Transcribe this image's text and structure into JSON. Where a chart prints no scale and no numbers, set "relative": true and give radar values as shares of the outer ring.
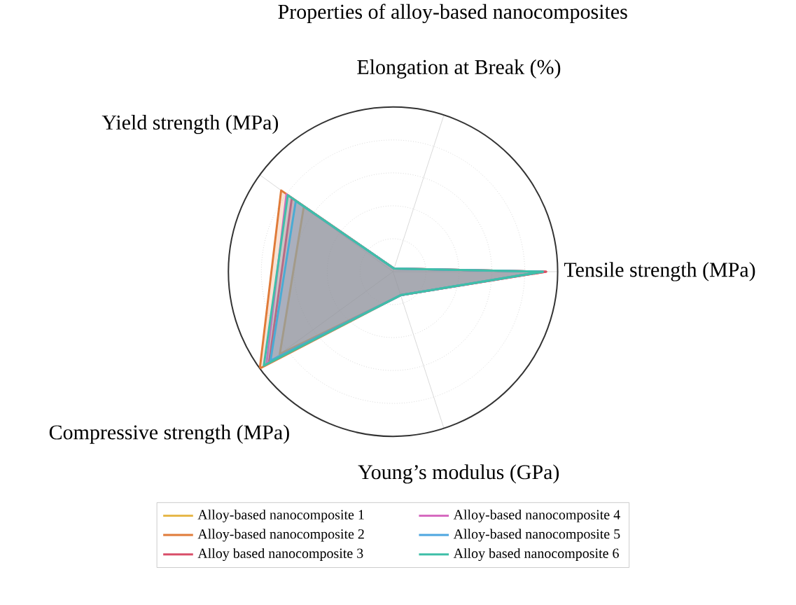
{
  "chart_data": {
    "type": "radar",
    "title": "Properties of alloy-based nanocomposites",
    "relative": true,
    "grid": true,
    "legend": "bottom",
    "categories": [
      "Elongation at Break (%)",
      "Tensile strength (MPa)",
      "Young’s modulus (GPa)",
      "Compressive strength (MPa)",
      "Yield strength (MPa)"
    ],
    "series": [
      {
        "name": "Alloy-based nanocomposite 1",
        "color": "#e6b84a",
        "values": [
          0.02,
          0.9,
          0.15,
          0.85,
          0.67
        ]
      },
      {
        "name": "Alloy-based nanocomposite 2",
        "color": "#e07b39",
        "values": [
          0.02,
          0.93,
          0.15,
          1.0,
          0.84
        ]
      },
      {
        "name": "Alloy based nanocomposite 3",
        "color": "#d94f6a",
        "values": [
          0.02,
          0.93,
          0.15,
          0.93,
          0.76
        ]
      },
      {
        "name": "Alloy-based nanocomposite 4",
        "color": "#d66bc0",
        "values": [
          0.02,
          0.91,
          0.15,
          0.95,
          0.8
        ]
      },
      {
        "name": "Alloy-based nanocomposite 5",
        "color": "#4da6e0",
        "values": [
          0.02,
          0.91,
          0.15,
          0.92,
          0.73
        ]
      },
      {
        "name": "Alloy based nanocomposite 6",
        "color": "#3fbfa8",
        "values": [
          0.02,
          0.91,
          0.15,
          0.97,
          0.79
        ]
      }
    ]
  }
}
